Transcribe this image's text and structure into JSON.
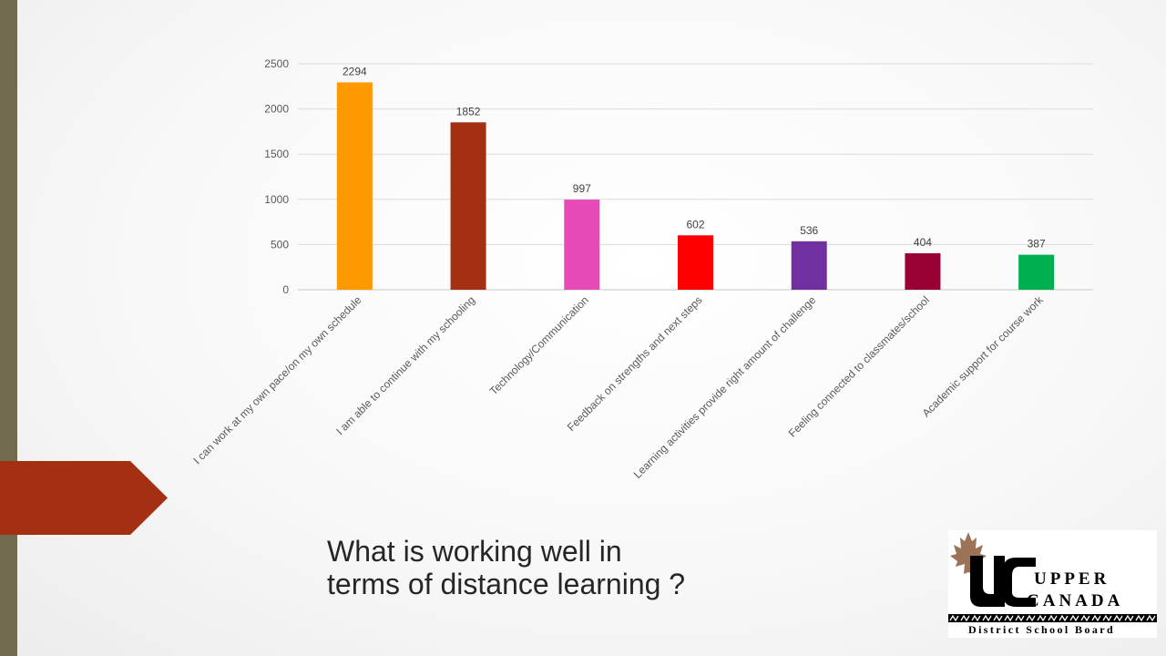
{
  "caption": {
    "line1": "What is working well in",
    "line2": "terms of distance learning ?"
  },
  "logo": {
    "word1": "UPPER",
    "word2": "CANADA",
    "word3": "District School Board"
  },
  "colors": {
    "left_bar": "#736b4f",
    "arrow": "#a33012",
    "maple_leaf": "#8b5a3c"
  },
  "chart_data": {
    "type": "bar",
    "categories": [
      "I can work at my own pace/on my own schedule",
      "I am able to continue with my schooling",
      "Technology/Communication",
      "Feedback on strengths and next steps",
      "Learning activities provide right amount of challenge",
      "Feeling connected to classmates/school",
      "Academic support for course work"
    ],
    "values": [
      2294,
      1852,
      997,
      602,
      536,
      404,
      387
    ],
    "bar_colors": [
      "#ff9900",
      "#a33012",
      "#e64ab7",
      "#ff0000",
      "#7030a0",
      "#990033",
      "#00b050"
    ],
    "title": "",
    "xlabel": "",
    "ylabel": "",
    "ylim": [
      0,
      2500
    ],
    "yticks": [
      0,
      500,
      1000,
      1500,
      2000,
      2500
    ],
    "grid": true,
    "data_labels": true,
    "legend": "none"
  }
}
